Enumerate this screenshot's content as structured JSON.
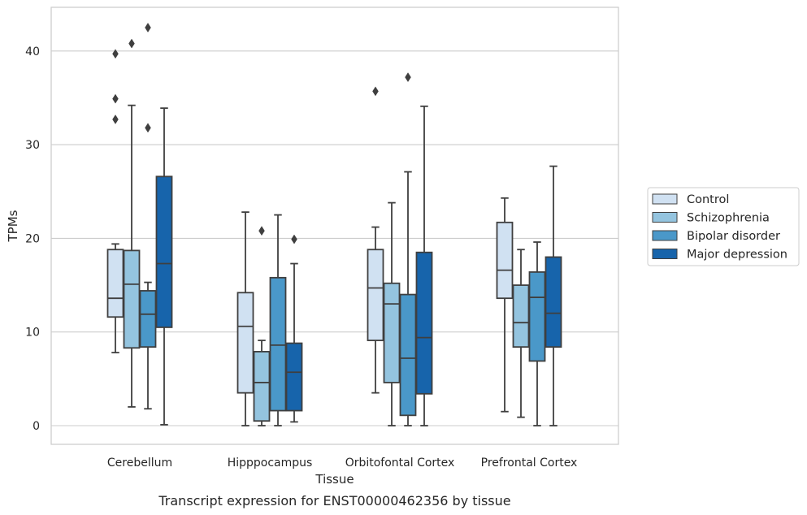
{
  "chart_data": {
    "type": "box",
    "caption": "Transcript expression for ENST00000462356 by tissue",
    "xlabel": "Tissue",
    "ylabel": "TPMs",
    "ylim": [
      -2,
      44.5
    ],
    "yticks": [
      0,
      10,
      20,
      30,
      40
    ],
    "grid": "horizontal",
    "legend_position": "right",
    "categories": [
      "Cerebellum",
      "Hipppocampus",
      "Orbitofontal Cortex",
      "Prefrontal Cortex"
    ],
    "series": [
      {
        "name": "Control",
        "color": "#d0e1f2",
        "boxes": [
          {
            "whislo": 7.8,
            "q1": 11.6,
            "median": 13.6,
            "q3": 18.8,
            "whishi": 19.4,
            "fliers": [
              32.7,
              34.9,
              39.7
            ]
          },
          {
            "whislo": 0.0,
            "q1": 3.5,
            "median": 10.6,
            "q3": 14.2,
            "whishi": 22.8,
            "fliers": []
          },
          {
            "whislo": 3.5,
            "q1": 9.1,
            "median": 14.7,
            "q3": 18.8,
            "whishi": 21.2,
            "fliers": [
              35.7
            ]
          },
          {
            "whislo": 1.5,
            "q1": 13.6,
            "median": 16.6,
            "q3": 21.7,
            "whishi": 24.3,
            "fliers": []
          }
        ]
      },
      {
        "name": "Schizophrenia",
        "color": "#94c4df",
        "boxes": [
          {
            "whislo": 2.0,
            "q1": 8.3,
            "median": 15.1,
            "q3": 18.7,
            "whishi": 34.2,
            "fliers": [
              40.8
            ]
          },
          {
            "whislo": 0.0,
            "q1": 0.5,
            "median": 4.6,
            "q3": 7.9,
            "whishi": 9.1,
            "fliers": [
              20.8
            ]
          },
          {
            "whislo": 0.0,
            "q1": 4.6,
            "median": 13.0,
            "q3": 15.2,
            "whishi": 23.8,
            "fliers": []
          },
          {
            "whislo": 0.9,
            "q1": 8.4,
            "median": 11.0,
            "q3": 15.0,
            "whishi": 18.8,
            "fliers": []
          }
        ]
      },
      {
        "name": "Bipolar disorder",
        "color": "#4a98c9",
        "boxes": [
          {
            "whislo": 1.8,
            "q1": 8.4,
            "median": 11.9,
            "q3": 14.4,
            "whishi": 15.3,
            "fliers": [
              31.8,
              42.5
            ]
          },
          {
            "whislo": 0.0,
            "q1": 1.6,
            "median": 8.6,
            "q3": 15.8,
            "whishi": 22.5,
            "fliers": []
          },
          {
            "whislo": 0.0,
            "q1": 1.1,
            "median": 7.2,
            "q3": 14.0,
            "whishi": 27.1,
            "fliers": [
              37.2
            ]
          },
          {
            "whislo": 0.0,
            "q1": 6.9,
            "median": 13.7,
            "q3": 16.4,
            "whishi": 19.6,
            "fliers": []
          }
        ]
      },
      {
        "name": "Major depression",
        "color": "#1764ab",
        "boxes": [
          {
            "whislo": 0.1,
            "q1": 10.5,
            "median": 17.3,
            "q3": 26.6,
            "whishi": 33.9,
            "fliers": []
          },
          {
            "whislo": 0.4,
            "q1": 1.6,
            "median": 5.7,
            "q3": 8.8,
            "whishi": 17.3,
            "fliers": [
              19.9
            ]
          },
          {
            "whislo": 0.0,
            "q1": 3.4,
            "median": 9.4,
            "q3": 18.5,
            "whishi": 34.1,
            "fliers": []
          },
          {
            "whislo": 0.0,
            "q1": 8.4,
            "median": 12.0,
            "q3": 18.0,
            "whishi": 27.7,
            "fliers": []
          }
        ]
      }
    ]
  }
}
